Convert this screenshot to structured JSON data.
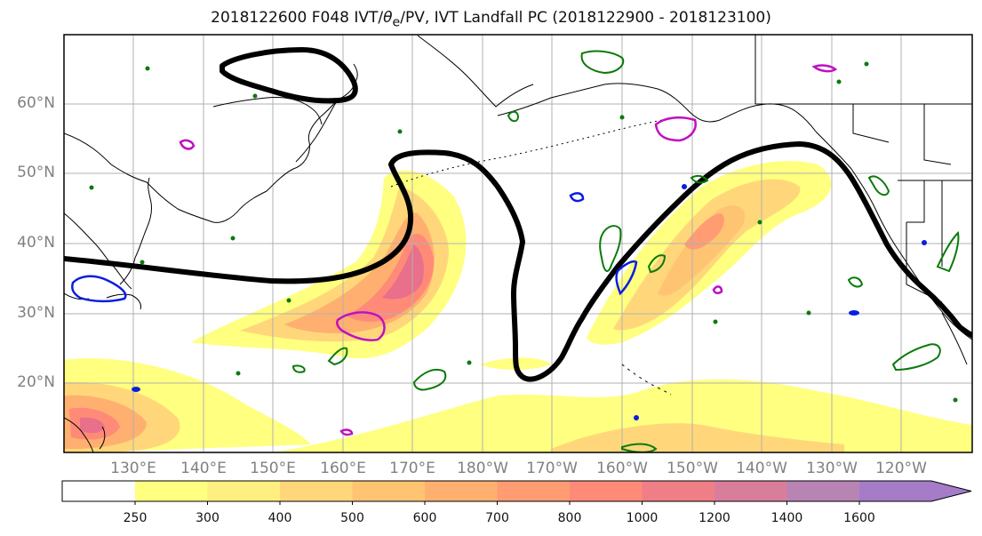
{
  "title": {
    "prefix": "2018122600 F048 IVT/",
    "theta": "θ",
    "theta_sub": "e",
    "suffix": "/PV, IVT Landfall PC (2018122900 - 2018123100)"
  },
  "lat_labels": [
    "60°N",
    "50°N",
    "40°N",
    "30°N",
    "20°N"
  ],
  "lon_labels": [
    "130°E",
    "140°E",
    "150°E",
    "160°E",
    "170°E",
    "180°W",
    "170°W",
    "160°W",
    "150°W",
    "140°W",
    "130°W",
    "120°W"
  ],
  "colorbar": {
    "ticks": [
      "250",
      "300",
      "400",
      "500",
      "600",
      "700",
      "800",
      "1000",
      "1200",
      "1400",
      "1600"
    ],
    "colors": [
      "#ffff80",
      "#ffee80",
      "#ffd77a",
      "#ffc472",
      "#ffb070",
      "#ff9c72",
      "#ff8a78",
      "#f07e86",
      "#d97e9a",
      "#b884b4",
      "#a47cc8"
    ]
  },
  "map_colors": {
    "ivt_low": "#ffff80",
    "ivt_mid": "#ffc472",
    "ivt_high": "#ff8a78",
    "ivt_peak": "#e8708a",
    "theta_e_contour": "#000000",
    "pv_green": "#0a7a0a",
    "pv_blue": "#0a1ee0",
    "pv_magenta": "#c010c0",
    "coastline": "#000000",
    "grid": "#b0b0b0"
  }
}
